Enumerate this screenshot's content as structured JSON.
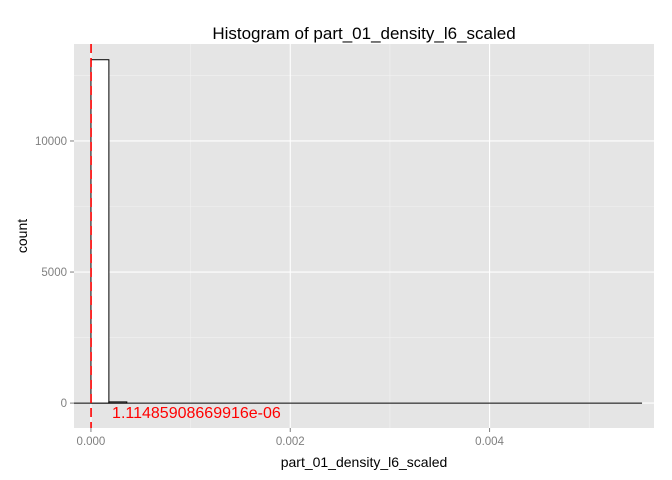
{
  "chart_data": {
    "type": "bar",
    "title": "Histogram of  part_01_density_l6_scaled",
    "xlabel": "part_01_density_l6_scaled",
    "ylabel": "count",
    "xlim": [
      -0.00017,
      0.00565
    ],
    "ylim": [
      -950,
      13700
    ],
    "x_ticks": [
      0.0,
      0.002,
      0.004
    ],
    "x_tick_labels": [
      "0.000",
      "0.002",
      "0.004"
    ],
    "y_ticks": [
      0,
      5000,
      10000
    ],
    "y_tick_labels": [
      "0",
      "5000",
      "10000"
    ],
    "grid": true,
    "bin_width": 0.00018,
    "bins": [
      {
        "start": 0.0,
        "end": 0.00018,
        "count": 13100
      },
      {
        "start": 0.00018,
        "end": 0.00036,
        "count": 45
      }
    ],
    "baseline_range": [
      -0.00017,
      0.00553
    ],
    "vline": {
      "x": 1.11485908669916e-06,
      "label": "1.11485908669916e-06",
      "color": "#ff0000",
      "style": "dashed"
    },
    "colors": {
      "panel": "#e5e5e5",
      "grid_major": "#ffffff",
      "grid_minor": "#f2f2f2",
      "bar_fill": "#ffffff",
      "bar_stroke": "#000000"
    }
  }
}
